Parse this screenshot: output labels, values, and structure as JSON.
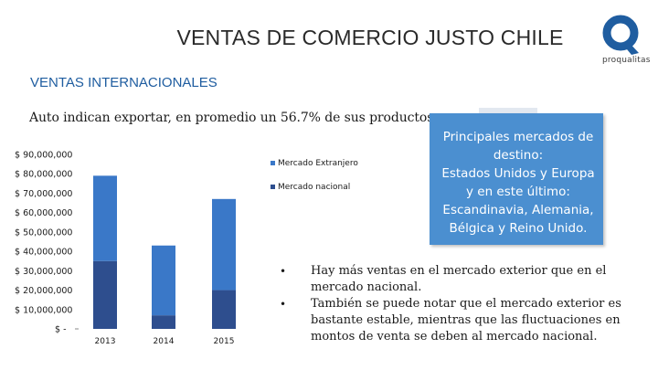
{
  "header": {
    "title": "VENTAS DE COMERCIO JUSTO CHILE",
    "logo_text": "proqualitas",
    "logo_color": "#1f5da0"
  },
  "subtitle": "VENTAS INTERNACIONALES",
  "intro": "Auto indican exportar, en promedio un 56.7% de sus productos.",
  "callout": {
    "lines": [
      "Principales mercados de",
      "destino:",
      "Estados Unidos y Europa",
      " y en este último:",
      "Escandinavia, Alemania,",
      "Bélgica y Reino Unido."
    ],
    "color": "#4b8fd0"
  },
  "bullets": [
    "Hay más ventas en el mercado exterior que en el mercado nacional.",
    "También se puede notar que el mercado exterior es bastante estable, mientras que las fluctuaciones en montos de venta se deben al mercado nacional."
  ],
  "chart_data": {
    "type": "bar",
    "stacked": true,
    "categories": [
      "2013",
      "2014",
      "2015"
    ],
    "series": [
      {
        "name": "Mercado nacional",
        "values": [
          35000000,
          7000000,
          20000000
        ],
        "color": "#2e4e8e"
      },
      {
        "name": "Mercado Extranjero",
        "values": [
          44000000,
          36000000,
          47000000
        ],
        "color": "#3a78c8"
      }
    ],
    "ytick_labels": [
      "$ -",
      "$ 10,000,000",
      "$ 20,000,000",
      "$ 30,000,000",
      "$ 40,000,000",
      "$ 50,000,000",
      "$ 60,000,000",
      "$ 70,000,000",
      "$ 80,000,000",
      "$ 90,000,000"
    ],
    "ylim": [
      0,
      90000000
    ],
    "legend_order": [
      "Mercado Extranjero",
      "Mercado nacional"
    ],
    "legend_position": "right",
    "grid": false
  }
}
